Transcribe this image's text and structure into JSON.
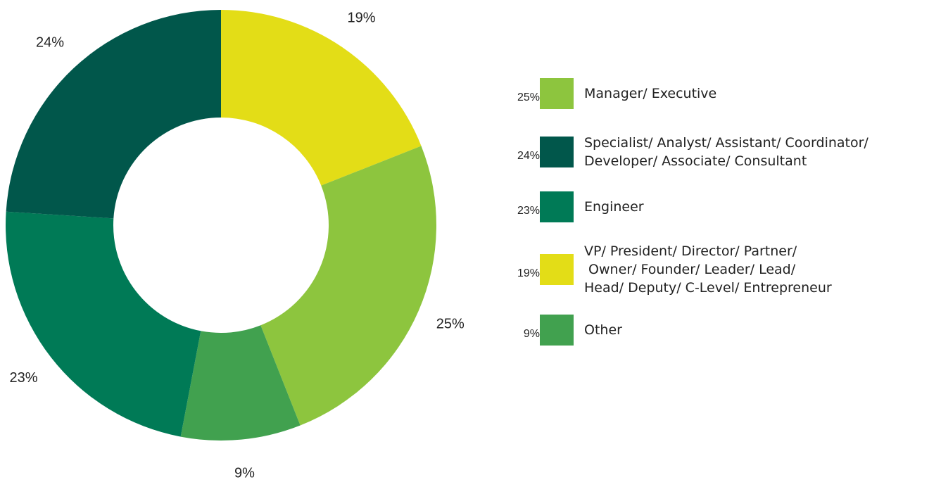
{
  "chart_data": {
    "type": "donut",
    "categories": [
      "VP/ President/ Director/ Partner/\n Owner/ Founder/ Leader/ Lead/\nHead/ Deputy/ C-Level/ Entrepreneur",
      "Manager/ Executive",
      "Other",
      "Engineer",
      "Specialist/ Analyst/ Assistant/ Coordinator/\nDeveloper/ Associate/ Consultant"
    ],
    "values": [
      19,
      25,
      9,
      23,
      24
    ],
    "value_labels": [
      "19%",
      "25%",
      "9%",
      "23%",
      "24%"
    ],
    "colors": [
      "#e3dd17",
      "#8dc53e",
      "#41a14f",
      "#007a56",
      "#01574b"
    ],
    "legend": "right"
  }
}
